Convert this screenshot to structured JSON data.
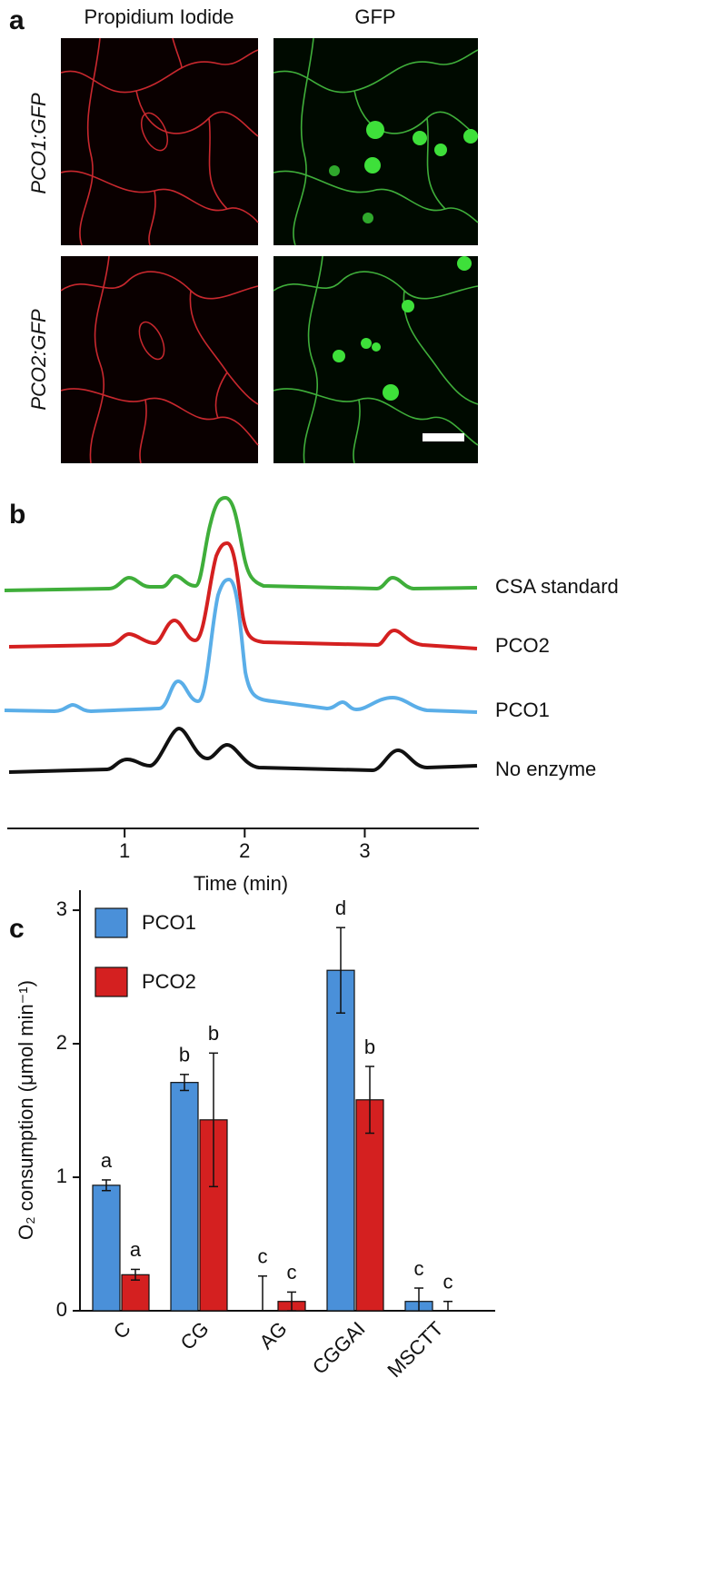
{
  "panel_labels": [
    "a",
    "b",
    "c"
  ],
  "images": {
    "column_titles": [
      "Propidium Iodide",
      "GFP"
    ],
    "row_labels": [
      "PCO1:GFP",
      "PCO2:GFP"
    ]
  },
  "chart_data": [
    {
      "type": "line",
      "xlabel": "Time (min)",
      "xlim": [
        0,
        3.95
      ],
      "xticks": [
        1,
        2,
        3
      ],
      "traces": [
        {
          "name": "CSA standard",
          "color": "#3fae3a"
        },
        {
          "name": "PCO2",
          "color": "#d42020"
        },
        {
          "name": "PCO1",
          "color": "#5aaee8"
        },
        {
          "name": "No enzyme",
          "color": "#111111"
        }
      ]
    },
    {
      "type": "bar",
      "ylabel": "O₂ consumption (μmol min⁻¹)",
      "categories": [
        "C",
        "CG",
        "AG",
        "CGGAI",
        "MSCTT"
      ],
      "ylim": [
        0,
        3.15
      ],
      "yticks": [
        0,
        1,
        2,
        3
      ],
      "legend": "top-left",
      "series": [
        {
          "name": "PCO1",
          "color": "#4a90d9",
          "values": [
            0.94,
            1.71,
            0,
            2.55,
            0.07
          ],
          "errors": [
            0.04,
            0.06,
            0.26,
            0.32,
            0.1
          ],
          "significance": [
            "a",
            "b",
            "c",
            "d",
            "c"
          ]
        },
        {
          "name": "PCO2",
          "color": "#d42020",
          "values": [
            0.27,
            1.43,
            0.07,
            1.58,
            0
          ],
          "errors": [
            0.04,
            0.5,
            0.07,
            0.25,
            0.07
          ],
          "significance": [
            "a",
            "b",
            "c",
            "b",
            "c"
          ]
        }
      ]
    }
  ]
}
